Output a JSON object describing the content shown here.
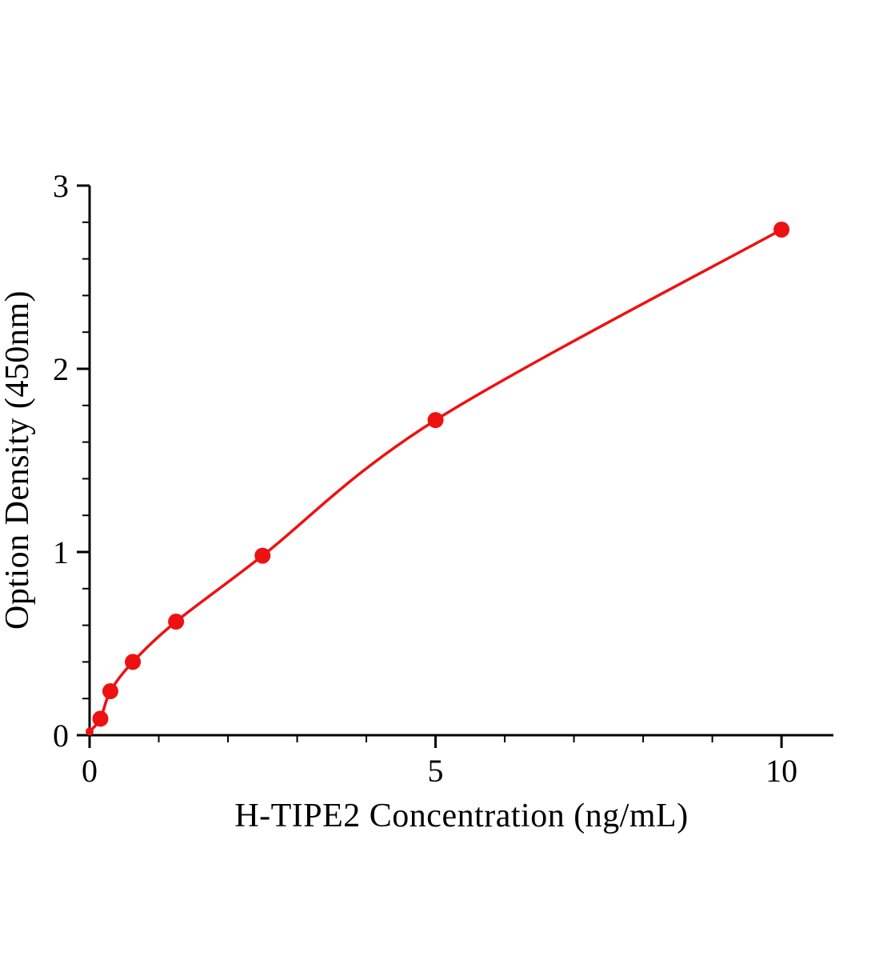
{
  "chart_data": {
    "type": "scatter",
    "title": "",
    "xlabel": "H-TIPE2 Concentration (ng/mL)",
    "ylabel": "Option Density (450nm)",
    "x": [
      0,
      0.156,
      0.3,
      0.625,
      1.25,
      2.5,
      5,
      10
    ],
    "y": [
      0.02,
      0.09,
      0.24,
      0.4,
      0.62,
      0.98,
      1.72,
      2.76
    ],
    "xlim": [
      0,
      10.75
    ],
    "ylim": [
      0,
      3
    ],
    "x_major_ticks": [
      0,
      5,
      10
    ],
    "x_minor_step": 1,
    "y_major_ticks": [
      0,
      1,
      2,
      3
    ],
    "y_minor_step": 0.2,
    "series_color": "#ee1111",
    "axis_color": "#000000",
    "marker_radius": 10,
    "line_width": 3.5,
    "grid": false,
    "legend": null,
    "curve_style": "smooth-through-points"
  }
}
